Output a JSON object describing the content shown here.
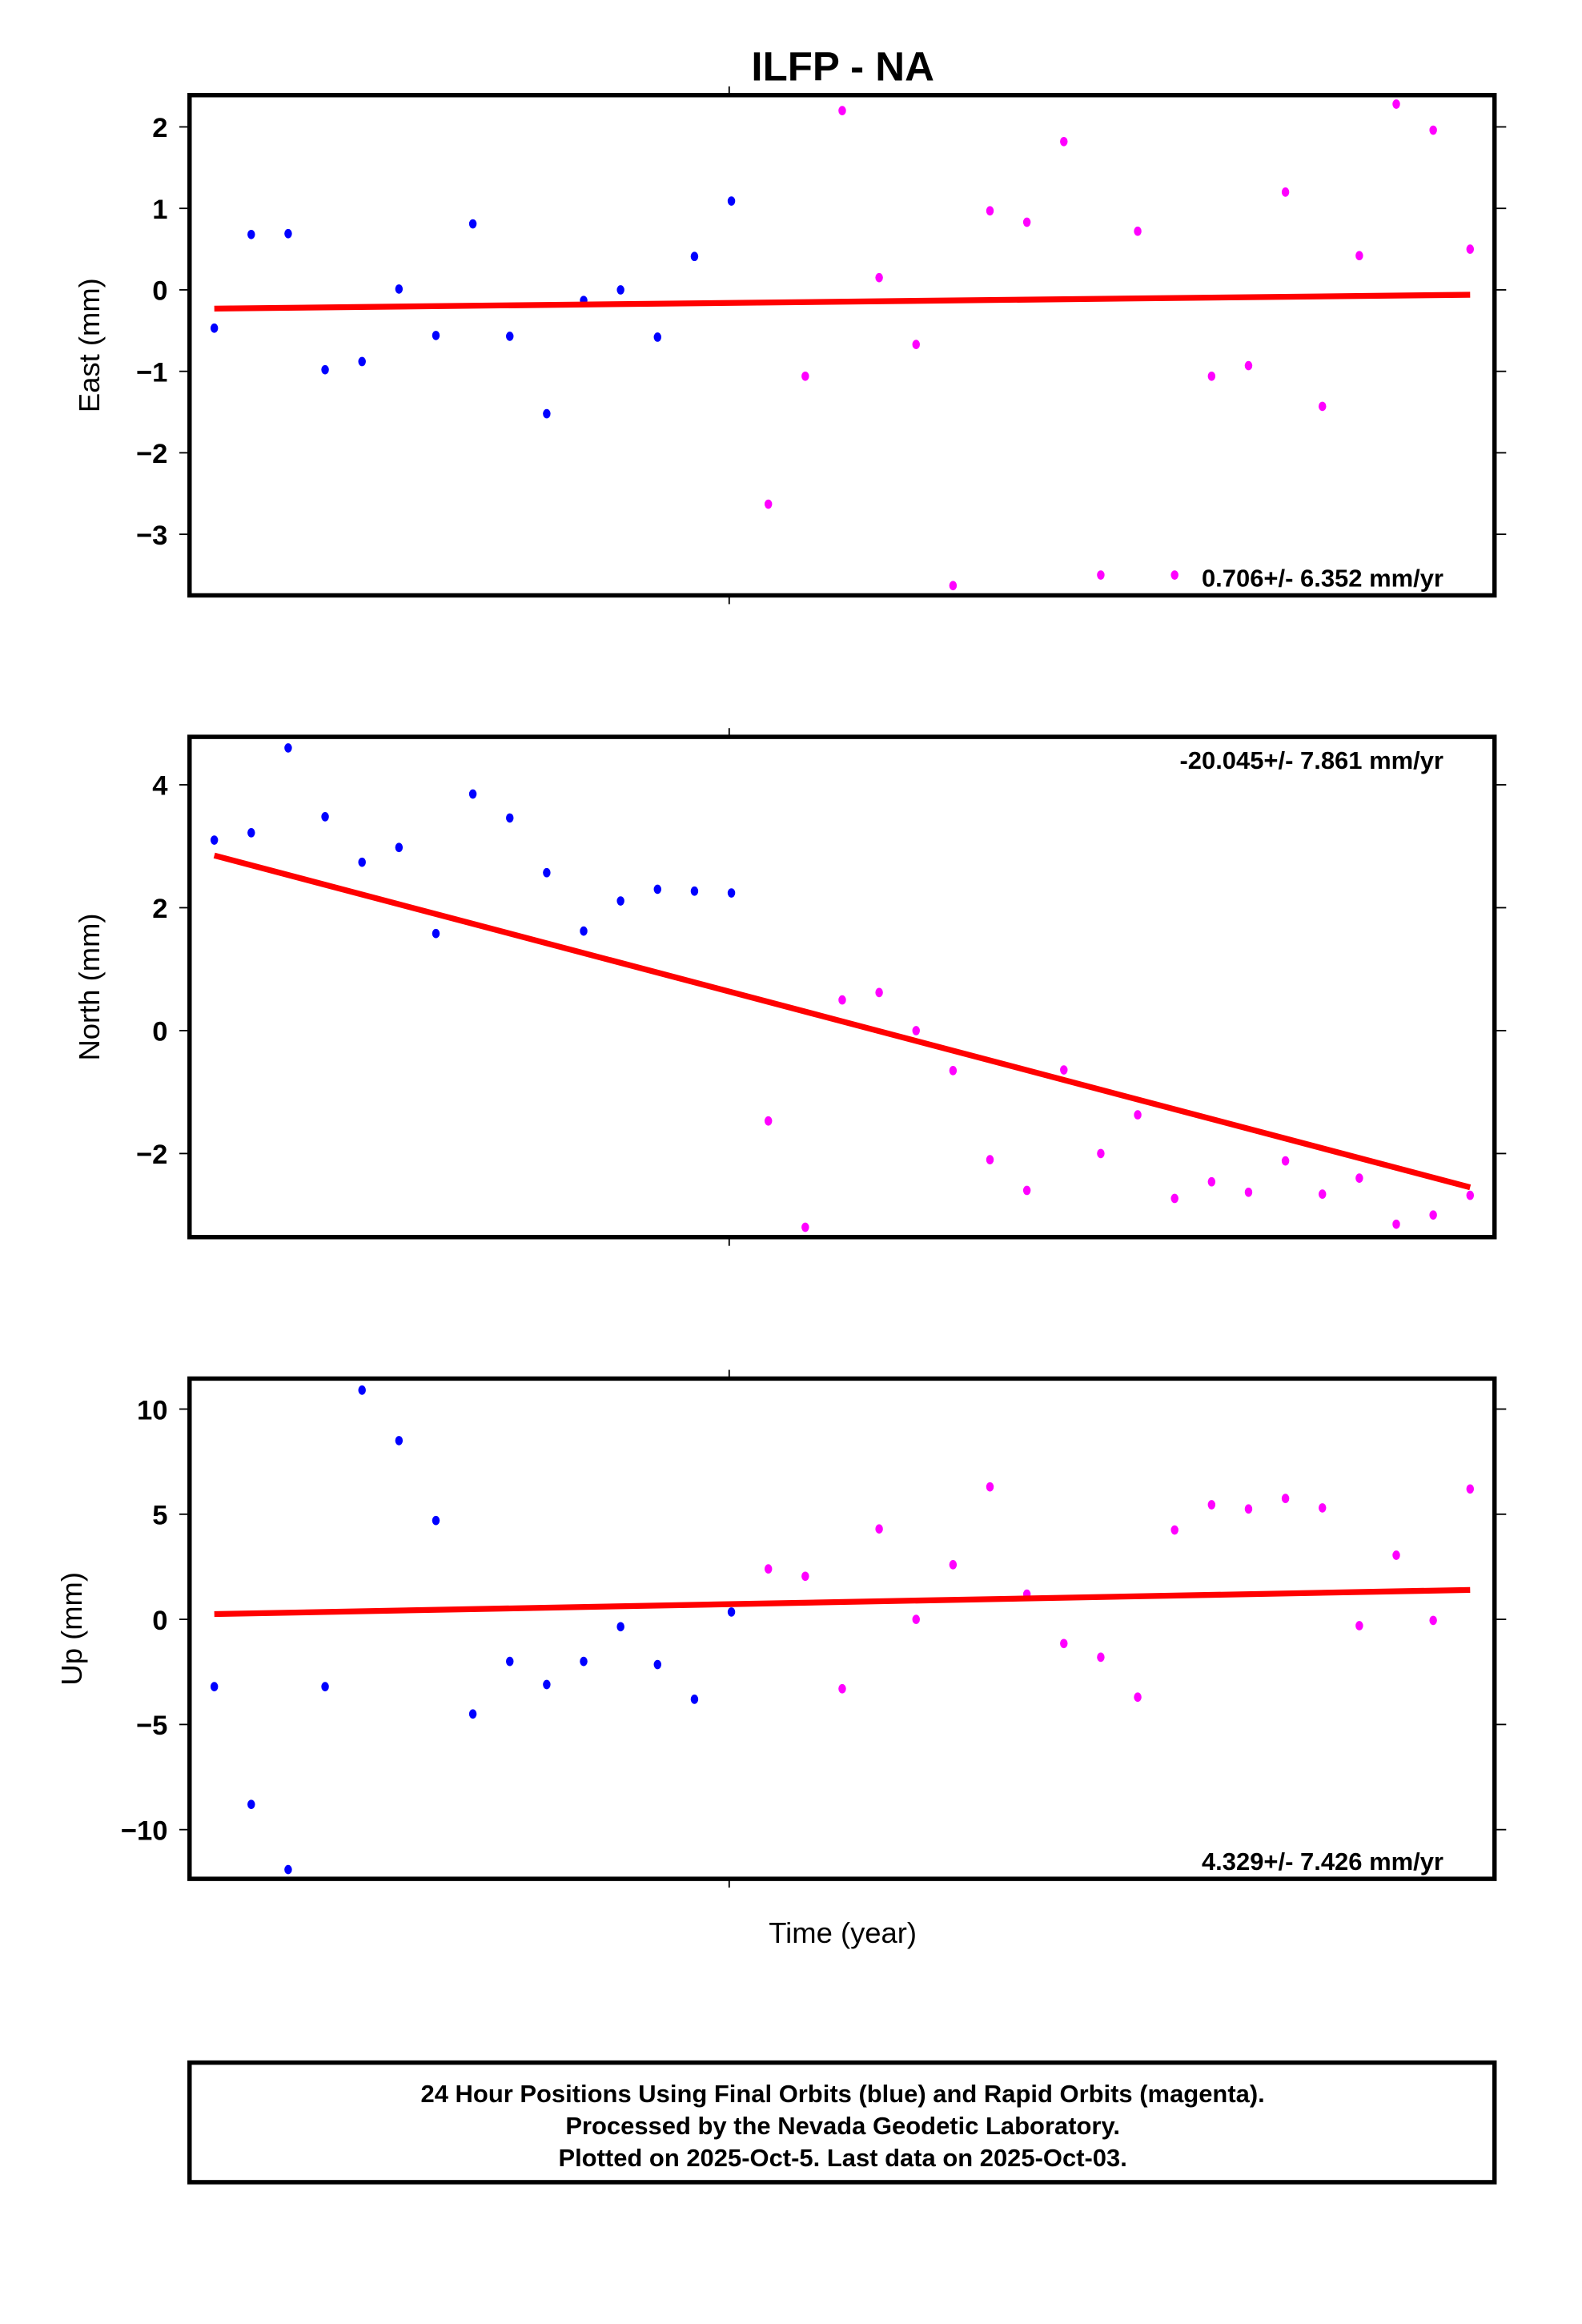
{
  "chart_data": {
    "type": "scatter",
    "title": "ILFP - NA",
    "xlabel": "Time (year)",
    "x_index_range": [
      -0.67,
      34.66
    ],
    "colors": {
      "final": "#0000ff",
      "rapid": "#ff00ff",
      "trend": "#ff0000"
    },
    "legend": "bottom-center box",
    "panels": [
      {
        "ylabel": "East (mm)",
        "ylim": [
          -3.75,
          2.39
        ],
        "yticks": [
          2,
          1,
          0,
          -1,
          -2,
          -3
        ],
        "ytick_labels": [
          "2",
          "1",
          "0",
          "−1",
          "−2",
          "−3"
        ],
        "rate_label": "0.706+/- 6.352 mm/yr",
        "rate_position": "bottom-right",
        "final": [
          -0.47,
          0.68,
          0.69,
          -0.98,
          -0.88,
          0.01,
          -0.56,
          0.81,
          -0.57,
          -1.52,
          -0.13,
          0.0,
          -0.58,
          0.41,
          1.09
        ],
        "rapid": [
          -2.63,
          -1.06,
          2.2,
          0.15,
          -0.67,
          -3.63,
          0.97,
          0.83,
          1.82,
          -3.5,
          0.72,
          -3.5,
          -1.06,
          -0.93,
          1.2,
          -1.43,
          0.42,
          2.28,
          1.96,
          0.5
        ],
        "trend": [
          -0.23,
          -0.06
        ]
      },
      {
        "ylabel": "North (mm)",
        "ylim": [
          -3.36,
          4.78
        ],
        "yticks": [
          4,
          2,
          0,
          -2
        ],
        "ytick_labels": [
          "4",
          "2",
          "0",
          "−2"
        ],
        "rate_label": "-20.045+/- 7.861 mm/yr",
        "rate_position": "top-right",
        "final": [
          3.1,
          3.22,
          4.6,
          3.48,
          2.74,
          2.98,
          1.58,
          3.85,
          3.46,
          2.57,
          1.62,
          2.11,
          2.3,
          2.27,
          2.24
        ],
        "rapid": [
          -1.47,
          -3.2,
          0.5,
          0.62,
          0.0,
          -0.65,
          -2.1,
          -2.6,
          -0.64,
          -2.0,
          -1.37,
          -2.73,
          -2.46,
          -2.63,
          -2.12,
          -2.66,
          -2.4,
          -3.15,
          -3.0,
          -2.68
        ],
        "trend": [
          2.85,
          -2.55
        ]
      },
      {
        "ylabel": "Up (mm)",
        "ylim": [
          -12.34,
          11.45
        ],
        "yticks": [
          10,
          5,
          0,
          -5,
          -10
        ],
        "ytick_labels": [
          "10",
          "5",
          "0",
          "−5",
          "−10"
        ],
        "rate_label": "4.329+/- 7.426 mm/yr",
        "rate_position": "bottom-right",
        "final": [
          -3.2,
          -8.8,
          -11.9,
          -3.2,
          10.9,
          8.5,
          4.7,
          -4.5,
          -2.0,
          -3.1,
          -2.0,
          -0.35,
          -2.15,
          -3.8,
          0.35
        ],
        "rapid": [
          2.4,
          2.05,
          -3.3,
          4.3,
          0.0,
          2.6,
          6.3,
          1.2,
          -1.15,
          -1.8,
          -3.7,
          4.25,
          5.45,
          5.25,
          5.75,
          5.3,
          -0.3,
          3.05,
          -0.05,
          6.2
        ],
        "trend": [
          0.25,
          1.4
        ]
      }
    ],
    "footer": [
      "24 Hour Positions Using Final Orbits (blue) and Rapid Orbits (magenta).",
      "Processed by the Nevada Geodetic Laboratory.",
      "Plotted on 2025-Oct-5. Last data on 2025-Oct-03."
    ]
  }
}
